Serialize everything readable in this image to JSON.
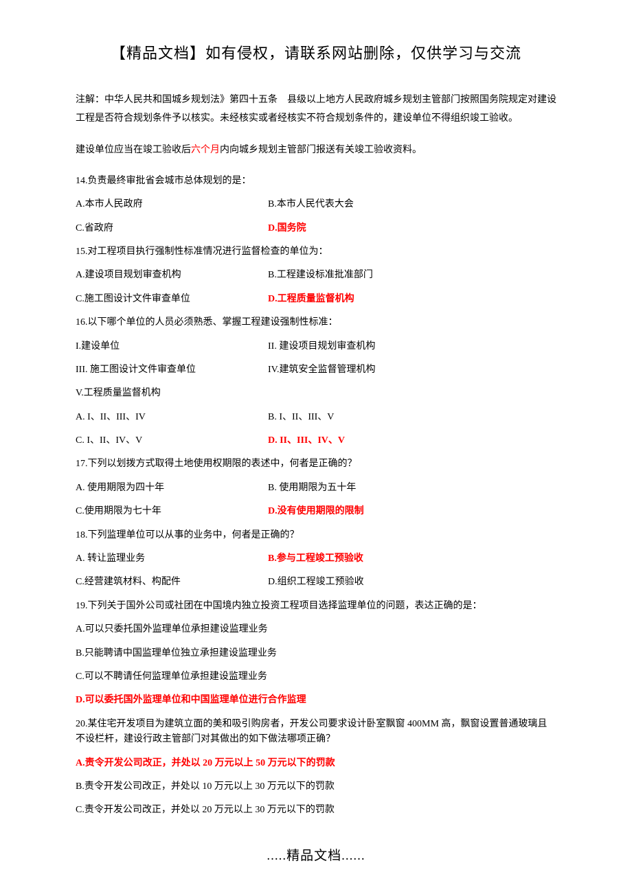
{
  "header": {
    "title": "【精品文档】如有侵权，请联系网站删除，仅供学习与交流"
  },
  "intro": {
    "para1": "注解：中华人民共和国城乡规划法》第四十五条　县级以上地方人民政府城乡规划主管部门按照国务院规定对建设工程是否符合规划条件予以核实。未经核实或者经核实不符合规划条件的，建设单位不得组织竣工验收。",
    "para2_pre": "建设单位应当在竣工验收后",
    "para2_red": "六个月",
    "para2_post": "内向城乡规划主管部门报送有关竣工验收资料。"
  },
  "questions": [
    {
      "id": "q14",
      "stem": "14.负责最终审批省会城市总体规划的是：",
      "rows": [
        {
          "l": {
            "text": "A.本市人民政府"
          },
          "r": {
            "text": "B.本市人民代表大会"
          }
        },
        {
          "l": {
            "text": "C.省政府"
          },
          "r": {
            "text": "D.国务院",
            "hl": true
          }
        }
      ]
    },
    {
      "id": "q15",
      "stem": "15.对工程项目执行强制性标准情况进行监督检查的单位为：",
      "rows": [
        {
          "l": {
            "text": "A.建设项目规划审查机构"
          },
          "r": {
            "text": "B.工程建设标准批准部门"
          }
        },
        {
          "l": {
            "text": "C.施工图设计文件审查单位"
          },
          "r": {
            "text": "D.工程质量监督机构",
            "hl": true
          }
        }
      ]
    },
    {
      "id": "q16",
      "stem": "16.以下哪个单位的人员必须熟悉、掌握工程建设强制性标准：",
      "rows": [
        {
          "l": {
            "text": "I.建设单位"
          },
          "r": {
            "text": "II. 建设项目规划审查机构"
          }
        },
        {
          "l": {
            "text": "III. 施工图设计文件审查单位"
          },
          "r": {
            "text": "IV.建筑安全监督管理机构"
          }
        }
      ],
      "singles_after": [
        {
          "text": "V.工程质量监督机构"
        }
      ],
      "rows2": [
        {
          "l": {
            "text": "A. I、II、III、IV"
          },
          "r": {
            "text": "B. I、II、III、V"
          }
        },
        {
          "l": {
            "text": "C. I、II、IV、V"
          },
          "r": {
            "text": "D. II、III、IV、V",
            "hl": true
          }
        }
      ]
    },
    {
      "id": "q17",
      "stem": "17.下列以划拨方式取得土地使用权期限的表述中，何者是正确的？",
      "rows": [
        {
          "l": {
            "text": "A. 使用期限为四十年"
          },
          "r": {
            "text": "B. 使用期限为五十年"
          }
        },
        {
          "l": {
            "text": "C.使用期限为七十年"
          },
          "r": {
            "text": "D.没有使用期限的限制",
            "hl": true
          }
        }
      ]
    },
    {
      "id": "q18",
      "stem": "18.下列监理单位可以从事的业务中，何者是正确的？",
      "rows": [
        {
          "l": {
            "text": "A. 转让监理业务"
          },
          "r": {
            "text": "B.参与工程竣工预验收",
            "hl": true
          }
        },
        {
          "l": {
            "text": "C.经营建筑材料、构配件"
          },
          "r": {
            "text": "D.组织工程竣工预验收"
          }
        }
      ]
    },
    {
      "id": "q19",
      "stem": "19.下列关于国外公司或社团在中国境内独立投资工程项目选择监理单位的问题，表达正确的是：",
      "full_opts": [
        {
          "text": "A.可以只委托国外监理单位承担建设监理业务"
        },
        {
          "text": "B.只能聘请中国监理单位独立承担建设监理业务"
        },
        {
          "text": "C.可以不聘请任何监理单位承担建设监理业务"
        },
        {
          "text": "D.可以委托国外监理单位和中国监理单位进行合作监理",
          "hl": true
        }
      ]
    },
    {
      "id": "q20",
      "stem": "20.某住宅开发项目为建筑立面的美和吸引购房者，开发公司要求设计卧室飘窗 400MM 高，飘窗设置普通玻璃且不设栏杆，建设行政主管部门对其做出的如下做法哪项正确？",
      "full_opts": [
        {
          "text": "A.责令开发公司改正，并处以 20 万元以上 50 万元以下的罚款",
          "hl": true
        },
        {
          "text": "B.责令开发公司改正，并处以 10 万元以上 30 万元以下的罚款"
        },
        {
          "text": "C.责令开发公司改正，并处以 20 万元以上 30 万元以下的罚款"
        }
      ]
    }
  ],
  "footer": {
    "text": ".....精品文档......"
  }
}
